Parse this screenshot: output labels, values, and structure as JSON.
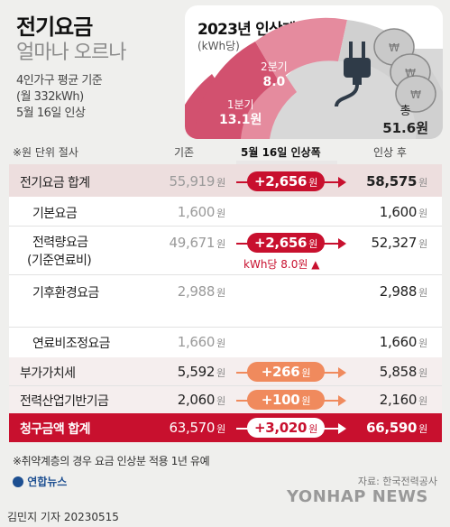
{
  "header": {
    "title": "전기요금",
    "subtitle": "얼마나 오르나",
    "conditions": [
      "4인가구 평균 기준",
      "(월 332kWh)",
      "5월 16일 인상"
    ]
  },
  "plan": {
    "title": "2023년 인상계획",
    "unit": "(kWh당)",
    "q1_label": "1분기",
    "q1_value": "13.1원",
    "q2_label": "2분기",
    "q2_value": "8.0",
    "total_label": "총",
    "total_value": "51.6원",
    "colors": {
      "q1": "#d2516f",
      "q2": "#e58b9e",
      "rest": "#d4d4d4",
      "accent": "#c8102e"
    }
  },
  "table": {
    "unit_note": "※원 단위 절사",
    "col_before": "기존",
    "col_increase": "5월 16일 인상폭",
    "col_after": "인상 후",
    "rows": [
      {
        "label": "전기요금 합계",
        "before": "55,919",
        "increase": "+2,656",
        "after": "58,575"
      },
      {
        "label": "기본요금",
        "before": "1,600",
        "increase": "",
        "after": "1,600"
      },
      {
        "label": "전력량요금",
        "label2": "(기준연료비)",
        "before": "49,671",
        "increase": "+2,656",
        "after": "52,327",
        "note": "kWh당 8.0원"
      },
      {
        "label": "기후환경요금",
        "before": "2,988",
        "increase": "",
        "after": "2,988"
      },
      {
        "label": "연료비조정요금",
        "before": "1,660",
        "increase": "",
        "after": "1,660"
      },
      {
        "label": "부가가치세",
        "before": "5,592",
        "increase": "+266",
        "after": "5,858"
      },
      {
        "label": "전력산업기반기금",
        "before": "2,060",
        "increase": "+100",
        "after": "2,160"
      },
      {
        "label": "청구금액 합계",
        "before": "63,570",
        "increase": "+3,020",
        "after": "66,590"
      }
    ],
    "won": "원"
  },
  "footnote": "※취약계층의 경우 요금 인상분 적용 1년 유예",
  "source": "자료: 한국전력공사",
  "logo_text": "연합뉴스",
  "watermark": "YONHAP NEWS",
  "credit": "김민지 기자  20230515"
}
